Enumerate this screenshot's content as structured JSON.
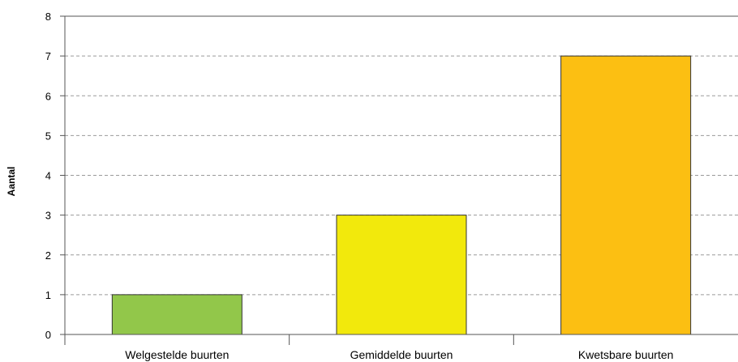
{
  "chart_data": {
    "type": "bar",
    "categories": [
      "Welgestelde buurten",
      "Gemiddelde buurten",
      "Kwetsbare buurten"
    ],
    "values": [
      1,
      3,
      7
    ],
    "colors": [
      "#92c74a",
      "#f2e90c",
      "#fcbf12"
    ],
    "title": "",
    "xlabel": "",
    "ylabel": "Aantal",
    "ylim": [
      0,
      8
    ],
    "yticks": [
      0,
      1,
      2,
      3,
      4,
      5,
      6,
      7,
      8
    ],
    "grid": true,
    "grid_style": "dashed",
    "legend": "none"
  }
}
